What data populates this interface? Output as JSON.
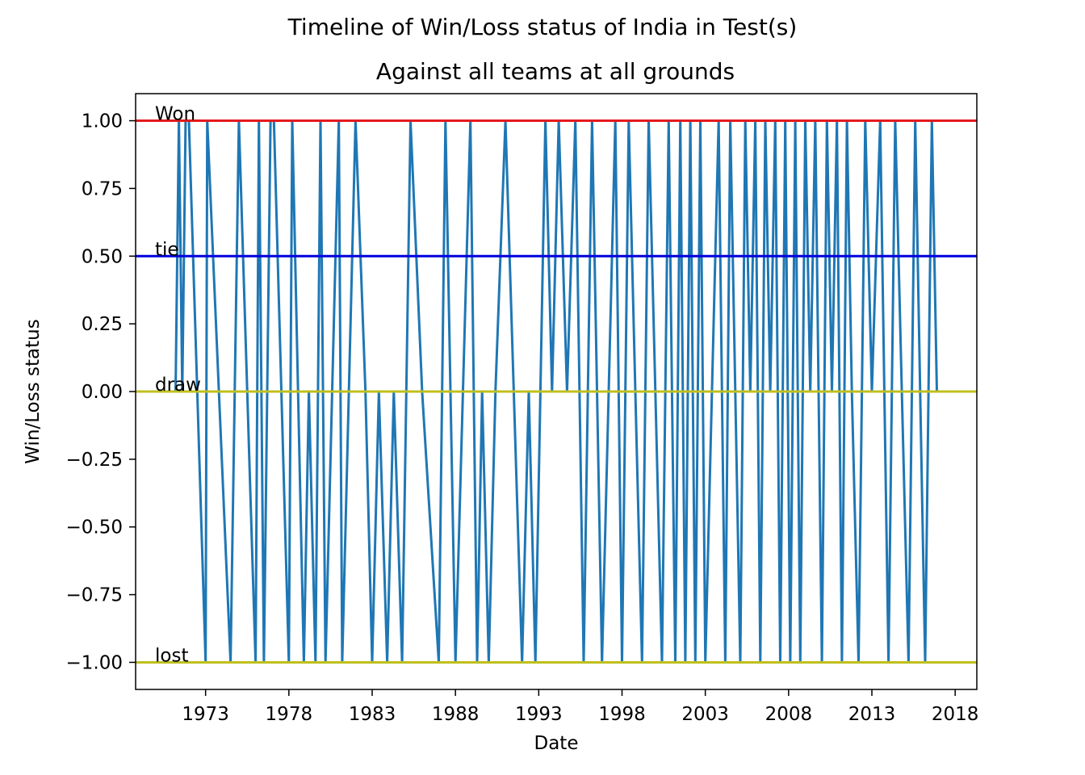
{
  "chart_data": {
    "type": "line",
    "title": "Timeline of Win/Loss status of India in Test(s)",
    "subtitle": "Against all teams at all grounds",
    "xlabel": "Date",
    "ylabel": "Win/Loss status",
    "xlim": [
      1968.8,
      2019.3
    ],
    "ylim": [
      -1.1,
      1.1
    ],
    "x_ticks": [
      1973,
      1978,
      1983,
      1988,
      1993,
      1998,
      2003,
      2008,
      2013,
      2018
    ],
    "y_ticks": [
      1.0,
      0.75,
      0.5,
      0.25,
      0.0,
      -0.25,
      -0.5,
      -0.75,
      -1.0
    ],
    "y_tick_labels": [
      "1.00",
      "0.75",
      "0.50",
      "0.25",
      "0.00",
      "−0.25",
      "−0.50",
      "−0.75",
      "−1.00"
    ],
    "grid": false,
    "reference_lines": [
      {
        "label": "Won",
        "y": 1.0,
        "color": "#e41a1c"
      },
      {
        "label": "tie",
        "y": 0.5,
        "color": "#0000dd"
      },
      {
        "label": "draw",
        "y": 0.0,
        "color": "#bfbf1f"
      },
      {
        "label": "lost",
        "y": -1.0,
        "color": "#bfbf1f"
      }
    ],
    "series": [
      {
        "color": "#1f77b4",
        "x": [
          1971.2,
          1971.4,
          1971.6,
          1971.8,
          1972.0,
          1973.0,
          1973.1,
          1974.5,
          1975.0,
          1976.0,
          1976.2,
          1976.5,
          1976.9,
          1977.1,
          1978.0,
          1978.2,
          1978.9,
          1979.2,
          1979.6,
          1979.9,
          1980.2,
          1981.0,
          1981.2,
          1982.0,
          1982.6,
          1983.0,
          1983.4,
          1983.9,
          1984.3,
          1984.8,
          1985.3,
          1986.0,
          1987.0,
          1987.4,
          1988.0,
          1988.9,
          1989.3,
          1989.6,
          1990.0,
          1990.4,
          1991.0,
          1991.5,
          1992.0,
          1992.4,
          1992.8,
          1993.4,
          1993.8,
          1994.2,
          1994.7,
          1995.2,
          1995.7,
          1996.2,
          1996.8,
          1997.2,
          1997.6,
          1998.0,
          1998.4,
          1998.8,
          1999.2,
          1999.6,
          2000.0,
          2000.4,
          2000.8,
          2001.2,
          2001.5,
          2001.8,
          2002.1,
          2002.4,
          2002.7,
          2003.0,
          2003.4,
          2003.8,
          2004.2,
          2004.5,
          2004.8,
          2005.1,
          2005.4,
          2005.7,
          2006.0,
          2006.3,
          2006.6,
          2006.9,
          2007.2,
          2007.5,
          2007.8,
          2008.1,
          2008.4,
          2008.7,
          2009.0,
          2009.3,
          2009.6,
          2010.0,
          2010.3,
          2010.6,
          2010.9,
          2011.2,
          2011.5,
          2011.8,
          2012.2,
          2012.6,
          2013.0,
          2013.5,
          2014.0,
          2014.4,
          2014.8,
          2015.2,
          2015.6,
          2015.9,
          2016.2,
          2016.6,
          2016.9
        ],
        "y": [
          0,
          1,
          0,
          1,
          1,
          -1,
          1,
          -1,
          1,
          -1,
          1,
          -1,
          1,
          1,
          -1,
          1,
          -1,
          0,
          -1,
          1,
          -1,
          1,
          -1,
          1,
          0,
          -1,
          0,
          -1,
          0,
          -1,
          1,
          0,
          -1,
          1,
          -1,
          1,
          -1,
          0,
          -1,
          0,
          1,
          0,
          -1,
          0,
          -1,
          1,
          0,
          1,
          0,
          1,
          -1,
          1,
          -1,
          0,
          1,
          -1,
          1,
          0,
          -1,
          1,
          0,
          -1,
          1,
          -1,
          1,
          -1,
          1,
          -1,
          1,
          -1,
          0,
          1,
          -1,
          1,
          0,
          -1,
          1,
          0,
          1,
          -1,
          1,
          0,
          1,
          -1,
          1,
          -1,
          1,
          -1,
          1,
          0,
          1,
          -1,
          1,
          0,
          1,
          -1,
          1,
          0,
          -1,
          1,
          0,
          1,
          -1,
          1,
          0,
          -1,
          1,
          0,
          -1,
          1,
          0
        ]
      }
    ]
  }
}
